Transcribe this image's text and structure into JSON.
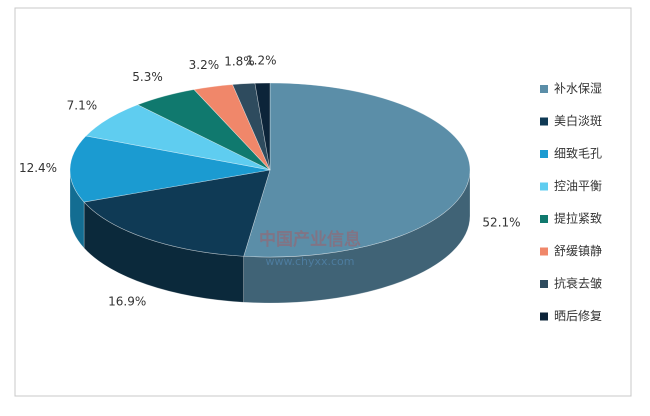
{
  "chart_data": {
    "type": "pie3d",
    "categories": [
      "补水保湿",
      "美白淡斑",
      "细致毛孔",
      "控油平衡",
      "提拉紧致",
      "舒缓镇静",
      "抗衰去皱",
      "晒后修复"
    ],
    "values": [
      52.1,
      16.9,
      12.4,
      7.1,
      5.3,
      3.2,
      1.8,
      1.2
    ],
    "value_labels": [
      "52.1%",
      "16.9%",
      "12.4%",
      "7.1%",
      "5.3%",
      "3.2%",
      "1.8%",
      "1.2%"
    ],
    "colors": [
      "#5b8ea8",
      "#0f3a55",
      "#1b9bd1",
      "#5fcdf0",
      "#10796e",
      "#f0876a",
      "#2e4b5e",
      "#0c2439"
    ],
    "legend": "right",
    "watermark": "中国产业信息",
    "watermark_url": "www.chyxx.com"
  }
}
